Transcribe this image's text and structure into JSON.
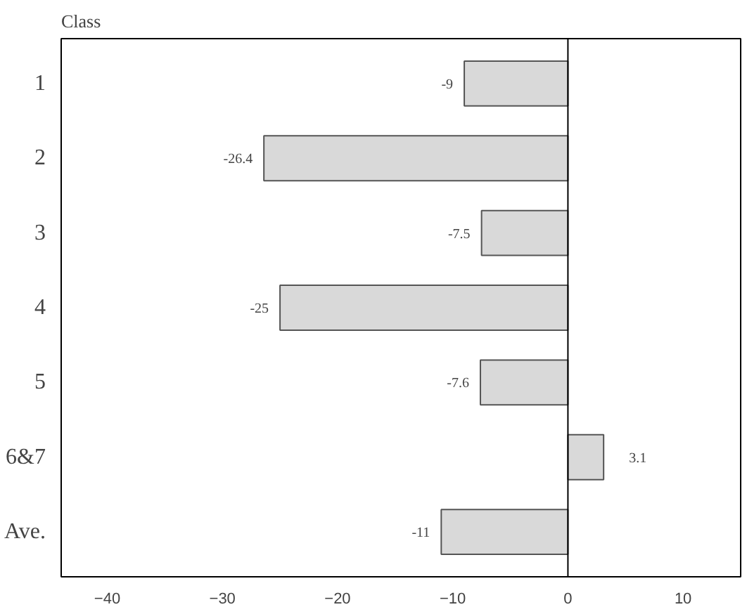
{
  "chart_data": {
    "type": "bar",
    "orientation": "horizontal",
    "ylabel": "Class",
    "categories": [
      "1",
      "2",
      "3",
      "4",
      "5",
      "6&7",
      "Ave."
    ],
    "values": [
      -9,
      -26.4,
      -7.5,
      -25,
      -7.6,
      3.1,
      -11
    ],
    "color": "#d9d9d9",
    "data_labels": true,
    "xlim": [
      -44,
      15
    ],
    "xticks": [
      -40,
      -30,
      -20,
      -10,
      0,
      10
    ],
    "ref_lines": [
      {
        "axis": "x",
        "value": 0,
        "label": null,
        "color": "#000000"
      }
    ]
  }
}
